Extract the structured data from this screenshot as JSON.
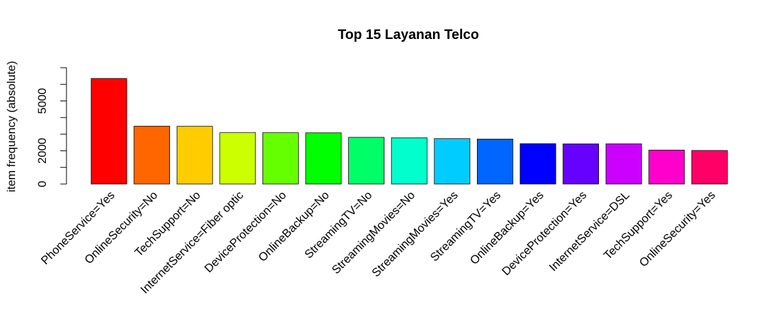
{
  "chart_data": {
    "type": "bar",
    "title": "Top 15 Layanan Telco",
    "y_label": "item frequency (absolute)",
    "categories": [
      "PhoneService=Yes",
      "OnlineSecurity=No",
      "TechSupport=No",
      "InternetService=Fiber optic",
      "DeviceProtection=No",
      "OnlineBackup=No",
      "StreamingTV=No",
      "StreamingMovies=No",
      "StreamingMovies=Yes",
      "StreamingTV=Yes",
      "OnlineBackup=Yes",
      "DeviceProtection=Yes",
      "InternetService=DSL",
      "TechSupport=Yes",
      "OnlineSecurity=Yes"
    ],
    "values": [
      6352,
      3484,
      3473,
      3096,
      3095,
      3088,
      2810,
      2785,
      2732,
      2707,
      2429,
      2418,
      2421,
      2044,
      2019
    ],
    "colors": [
      "#FF0000",
      "#FF6600",
      "#FFCC00",
      "#CCFF00",
      "#66FF00",
      "#00FF00",
      "#00FF66",
      "#00FFCC",
      "#00CCFF",
      "#0066FF",
      "#0000FF",
      "#6600FF",
      "#CC00FF",
      "#FF00CC",
      "#FF0066"
    ],
    "ylim": [
      0,
      7000
    ],
    "yticks": [
      0,
      2000,
      5000
    ],
    "yminor_ticks": [
      1000,
      3000,
      4000,
      6000,
      7000
    ],
    "grid": false
  }
}
